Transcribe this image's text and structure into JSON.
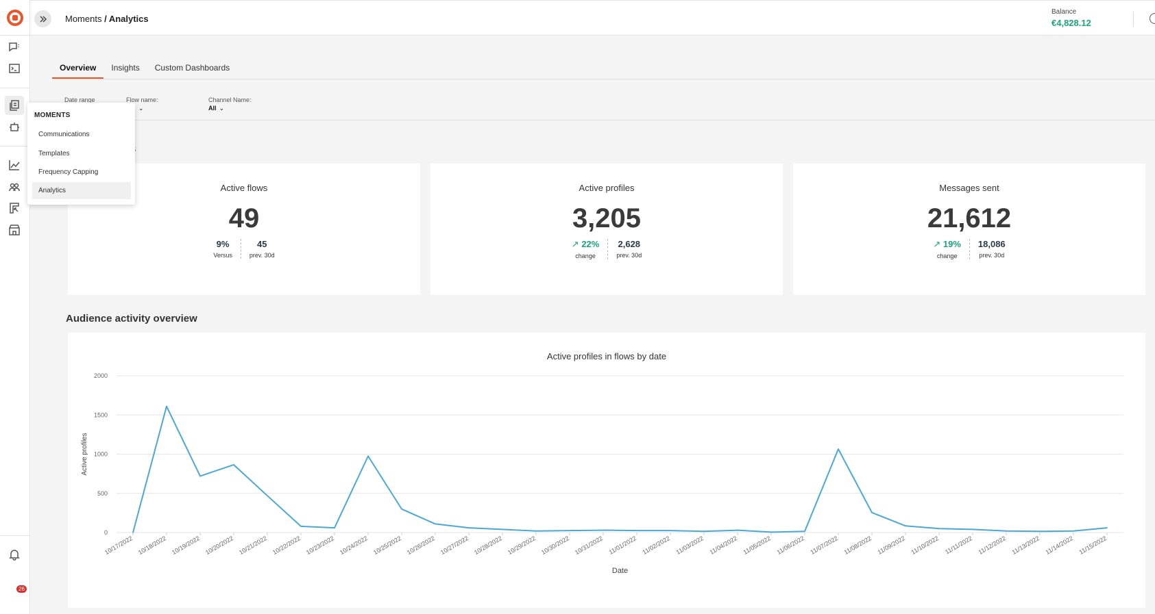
{
  "header": {
    "breadcrumb_parent": "Moments",
    "breadcrumb_sep": " / ",
    "breadcrumb_current": "Analytics",
    "balance_label": "Balance",
    "balance_value": "€4,828.12"
  },
  "rail": {
    "notification_count": "26",
    "icons": [
      "app-logo-icon",
      "chat-icon",
      "terminal-icon",
      "moments-icon",
      "bot-icon",
      "analytics-icon",
      "people-icon",
      "board-icon",
      "store-icon",
      "bell-icon"
    ]
  },
  "tabs": [
    "Overview",
    "Insights",
    "Custom Dashboards"
  ],
  "filters": [
    {
      "label": "Date range",
      "value": ""
    },
    {
      "label": "Flow name:",
      "value": ""
    },
    {
      "label": "Channel Name:",
      "value": "All"
    }
  ],
  "sections": {
    "kpis_title": "ts",
    "audience_title": "Audience activity overview"
  },
  "kpis": [
    {
      "title": "Active flows",
      "value": "49",
      "left_num": "9%",
      "left_label": "Versus",
      "right_num": "45",
      "right_label": "prev. 30d",
      "trend": ""
    },
    {
      "title": "Active profiles",
      "value": "3,205",
      "left_num": "22%",
      "left_label": "change",
      "right_num": "2,628",
      "right_label": "prev. 30d",
      "trend": "up"
    },
    {
      "title": "Messages sent",
      "value": "21,612",
      "left_num": "19%",
      "left_label": "change",
      "right_num": "18,086",
      "right_label": "prev. 30d",
      "trend": "up"
    }
  ],
  "menu": {
    "heading": "MOMENTS",
    "items": [
      "Communications",
      "Templates",
      "Frequency Capping",
      "Analytics"
    ],
    "active": "Analytics"
  },
  "colors": {
    "accent": "#e8572a",
    "positive": "#1aa57a",
    "line": "#4aa8d8"
  },
  "chart_data": {
    "type": "line",
    "title": "Active profiles in flows by date",
    "xlabel": "Date",
    "ylabel": "Active profiles",
    "ylim": [
      0,
      2000
    ],
    "yticks": [
      0,
      500,
      1000,
      1500,
      2000
    ],
    "grid": true,
    "x": [
      "10/17/2022",
      "10/18/2022",
      "10/19/2022",
      "10/20/2022",
      "10/21/2022",
      "10/22/2022",
      "10/23/2022",
      "10/24/2022",
      "10/25/2022",
      "10/26/2022",
      "10/27/2022",
      "10/28/2022",
      "10/29/2022",
      "10/30/2022",
      "10/31/2022",
      "11/01/2022",
      "11/02/2022",
      "11/03/2022",
      "11/04/2022",
      "11/05/2022",
      "11/06/2022",
      "11/07/2022",
      "11/08/2022",
      "11/09/2022",
      "11/10/2022",
      "11/11/2022",
      "11/12/2022",
      "11/13/2022",
      "11/14/2022",
      "11/15/2022"
    ],
    "series": [
      {
        "values": [
          0,
          1610,
          720,
          865,
          470,
          80,
          60,
          975,
          300,
          110,
          60,
          40,
          20,
          25,
          30,
          25,
          25,
          15,
          30,
          5,
          15,
          1065,
          255,
          85,
          50,
          40,
          20,
          15,
          20,
          60
        ]
      }
    ]
  }
}
